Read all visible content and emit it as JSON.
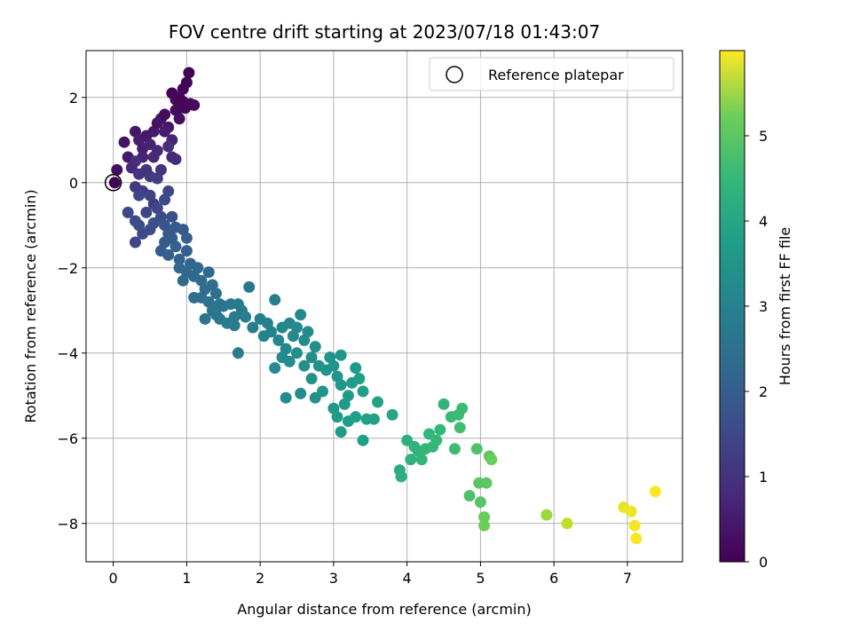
{
  "chart_data": {
    "type": "scatter",
    "title": "FOV centre drift starting at 2023/07/18 01:43:07",
    "xlabel": "Angular distance from reference (arcmin)",
    "ylabel": "Rotation from reference (arcmin)",
    "xlim": [
      -0.37,
      7.75
    ],
    "ylim": [
      -8.9,
      3.1
    ],
    "xticks": [
      "0",
      "1",
      "2",
      "3",
      "4",
      "5",
      "6",
      "7"
    ],
    "yticks": [
      "2",
      "0",
      "−2",
      "−4",
      "−6",
      "−8"
    ],
    "grid": true,
    "legend": {
      "placement": "top-right",
      "label": "Reference platepar"
    },
    "reference_point": {
      "x": 0,
      "y": 0
    },
    "colorbar": {
      "label": "Hours from first FF file",
      "ticks": [
        "0",
        "1",
        "2",
        "3",
        "4",
        "5"
      ],
      "range": [
        0,
        6
      ],
      "colormap": "viridis"
    },
    "points": [
      [
        0.02,
        0.0,
        0.02
      ],
      [
        0.05,
        0.3,
        0.2
      ],
      [
        0.2,
        0.6,
        0.4
      ],
      [
        0.15,
        0.95,
        0.3
      ],
      [
        0.3,
        1.2,
        0.35
      ],
      [
        0.35,
        1.0,
        0.5
      ],
      [
        0.4,
        0.8,
        0.5
      ],
      [
        0.45,
        1.1,
        0.4
      ],
      [
        0.5,
        0.9,
        0.6
      ],
      [
        0.55,
        1.2,
        0.45
      ],
      [
        0.6,
        1.4,
        0.3
      ],
      [
        0.65,
        1.5,
        0.35
      ],
      [
        0.7,
        1.6,
        0.2
      ],
      [
        0.75,
        1.3,
        0.4
      ],
      [
        0.8,
        1.0,
        0.6
      ],
      [
        0.85,
        1.7,
        0.2
      ],
      [
        0.9,
        1.5,
        0.25
      ],
      [
        0.95,
        1.9,
        0.1
      ],
      [
        0.8,
        2.1,
        0.05
      ],
      [
        0.85,
        1.95,
        0.1
      ],
      [
        0.9,
        2.0,
        0.08
      ],
      [
        0.95,
        2.2,
        0.05
      ],
      [
        1.0,
        2.35,
        0.03
      ],
      [
        1.03,
        2.58,
        0.01
      ],
      [
        1.05,
        1.85,
        0.1
      ],
      [
        1.1,
        1.82,
        0.12
      ],
      [
        0.9,
        1.75,
        0.15
      ],
      [
        0.98,
        1.75,
        0.12
      ],
      [
        0.7,
        1.2,
        0.5
      ],
      [
        0.6,
        0.75,
        0.7
      ],
      [
        0.75,
        0.85,
        0.8
      ],
      [
        0.8,
        0.6,
        0.7
      ],
      [
        0.85,
        0.55,
        0.75
      ],
      [
        0.55,
        0.6,
        0.7
      ],
      [
        0.4,
        0.6,
        0.6
      ],
      [
        0.3,
        0.5,
        0.8
      ],
      [
        0.25,
        0.35,
        0.7
      ],
      [
        0.35,
        0.2,
        0.9
      ],
      [
        0.45,
        0.3,
        0.85
      ],
      [
        0.5,
        0.15,
        1.0
      ],
      [
        0.6,
        0.1,
        1.1
      ],
      [
        0.65,
        0.3,
        0.9
      ],
      [
        0.3,
        -0.1,
        1.0
      ],
      [
        0.4,
        -0.2,
        1.1
      ],
      [
        0.35,
        -0.3,
        1.3
      ],
      [
        0.5,
        -0.3,
        1.2
      ],
      [
        0.55,
        -0.5,
        1.1
      ],
      [
        0.45,
        -0.7,
        1.25
      ],
      [
        0.6,
        -0.6,
        1.3
      ],
      [
        0.7,
        -0.4,
        1.35
      ],
      [
        0.75,
        -0.2,
        1.3
      ],
      [
        0.65,
        -0.8,
        1.4
      ],
      [
        0.2,
        -0.7,
        1.3
      ],
      [
        0.3,
        -0.9,
        1.35
      ],
      [
        0.35,
        -1.0,
        1.4
      ],
      [
        0.4,
        -1.2,
        1.35
      ],
      [
        0.3,
        -1.4,
        1.3
      ],
      [
        0.5,
        -1.1,
        1.45
      ],
      [
        0.55,
        -0.95,
        1.5
      ],
      [
        0.7,
        -1.0,
        1.6
      ],
      [
        0.75,
        -1.2,
        1.65
      ],
      [
        0.8,
        -0.8,
        1.5
      ],
      [
        0.85,
        -1.05,
        1.7
      ],
      [
        0.95,
        -1.1,
        1.75
      ],
      [
        1.0,
        -1.3,
        1.8
      ],
      [
        0.8,
        -1.3,
        1.7
      ],
      [
        0.7,
        -1.4,
        1.75
      ],
      [
        0.65,
        -1.6,
        1.7
      ],
      [
        0.75,
        -1.7,
        1.8
      ],
      [
        0.85,
        -1.5,
        1.85
      ],
      [
        0.9,
        -1.8,
        1.9
      ],
      [
        1.0,
        -1.6,
        1.85
      ],
      [
        1.05,
        -1.9,
        1.95
      ],
      [
        0.9,
        -2.0,
        2.0
      ],
      [
        1.0,
        -2.1,
        2.0
      ],
      [
        0.95,
        -2.3,
        2.05
      ],
      [
        1.1,
        -2.2,
        2.05
      ],
      [
        1.15,
        -2.0,
        2.0
      ],
      [
        1.2,
        -2.3,
        2.1
      ],
      [
        1.3,
        -2.1,
        2.05
      ],
      [
        1.25,
        -2.5,
        2.15
      ],
      [
        1.35,
        -2.4,
        2.15
      ],
      [
        1.2,
        -2.7,
        2.2
      ],
      [
        1.1,
        -2.7,
        2.15
      ],
      [
        1.3,
        -2.8,
        2.25
      ],
      [
        1.4,
        -2.6,
        2.2
      ],
      [
        1.45,
        -2.85,
        2.3
      ],
      [
        1.35,
        -3.0,
        2.25
      ],
      [
        1.25,
        -3.2,
        2.3
      ],
      [
        1.4,
        -3.1,
        2.35
      ],
      [
        1.45,
        -3.2,
        2.4
      ],
      [
        1.5,
        -2.9,
        2.35
      ],
      [
        1.6,
        -2.85,
        2.4
      ],
      [
        1.7,
        -2.85,
        2.45
      ],
      [
        1.65,
        -3.15,
        2.5
      ],
      [
        1.75,
        -3.0,
        2.45
      ],
      [
        1.8,
        -3.15,
        2.55
      ],
      [
        1.55,
        -3.3,
        2.5
      ],
      [
        1.65,
        -3.35,
        2.55
      ],
      [
        1.85,
        -2.45,
        2.4
      ],
      [
        1.7,
        -4.0,
        2.5
      ],
      [
        1.9,
        -3.4,
        2.6
      ],
      [
        2.0,
        -3.2,
        2.6
      ],
      [
        2.1,
        -3.3,
        2.65
      ],
      [
        2.15,
        -3.5,
        2.7
      ],
      [
        2.2,
        -2.75,
        2.6
      ],
      [
        2.05,
        -3.6,
        2.7
      ],
      [
        2.25,
        -3.7,
        2.75
      ],
      [
        2.3,
        -3.4,
        2.75
      ],
      [
        2.4,
        -3.3,
        2.8
      ],
      [
        2.35,
        -3.9,
        2.8
      ],
      [
        2.45,
        -3.6,
        2.85
      ],
      [
        2.5,
        -3.4,
        2.85
      ],
      [
        2.55,
        -3.1,
        2.8
      ],
      [
        2.6,
        -3.7,
        2.9
      ],
      [
        2.65,
        -3.5,
        2.9
      ],
      [
        2.3,
        -4.1,
        2.85
      ],
      [
        2.2,
        -4.35,
        2.85
      ],
      [
        2.4,
        -4.2,
        2.9
      ],
      [
        2.5,
        -4.0,
        2.95
      ],
      [
        2.6,
        -4.3,
        3.0
      ],
      [
        2.7,
        -4.1,
        3.0
      ],
      [
        2.75,
        -3.85,
        2.95
      ],
      [
        2.8,
        -4.3,
        3.05
      ],
      [
        2.35,
        -5.05,
        2.9
      ],
      [
        2.55,
        -4.95,
        2.95
      ],
      [
        2.7,
        -4.6,
        3.05
      ],
      [
        2.75,
        -5.05,
        3.05
      ],
      [
        2.85,
        -4.9,
        3.1
      ],
      [
        2.9,
        -4.4,
        3.1
      ],
      [
        2.95,
        -4.1,
        3.05
      ],
      [
        3.0,
        -4.3,
        3.1
      ],
      [
        3.05,
        -4.55,
        3.15
      ],
      [
        3.1,
        -4.75,
        3.2
      ],
      [
        3.1,
        -4.05,
        3.1
      ],
      [
        3.0,
        -5.3,
        3.2
      ],
      [
        3.05,
        -5.5,
        3.25
      ],
      [
        3.15,
        -5.2,
        3.2
      ],
      [
        3.2,
        -5.0,
        3.25
      ],
      [
        3.25,
        -4.7,
        3.3
      ],
      [
        3.3,
        -4.35,
        3.25
      ],
      [
        3.35,
        -4.6,
        3.35
      ],
      [
        3.4,
        -4.9,
        3.35
      ],
      [
        3.2,
        -5.6,
        3.3
      ],
      [
        3.3,
        -5.5,
        3.35
      ],
      [
        3.45,
        -5.55,
        3.4
      ],
      [
        3.55,
        -5.55,
        3.45
      ],
      [
        3.6,
        -5.15,
        3.45
      ],
      [
        3.1,
        -5.85,
        3.3
      ],
      [
        3.4,
        -6.05,
        3.35
      ],
      [
        3.8,
        -5.45,
        3.55
      ],
      [
        3.9,
        -6.75,
        3.7
      ],
      [
        3.92,
        -6.9,
        3.75
      ],
      [
        4.0,
        -6.05,
        3.8
      ],
      [
        4.05,
        -6.5,
        3.85
      ],
      [
        4.1,
        -6.2,
        3.85
      ],
      [
        4.15,
        -6.3,
        3.9
      ],
      [
        4.2,
        -6.5,
        3.95
      ],
      [
        4.25,
        -6.25,
        3.95
      ],
      [
        4.3,
        -5.9,
        3.95
      ],
      [
        4.35,
        -6.2,
        4.0
      ],
      [
        4.4,
        -6.05,
        4.0
      ],
      [
        4.45,
        -5.8,
        4.0
      ],
      [
        4.5,
        -5.2,
        3.9
      ],
      [
        4.6,
        -5.5,
        4.05
      ],
      [
        4.65,
        -6.25,
        4.1
      ],
      [
        4.7,
        -5.45,
        4.1
      ],
      [
        4.72,
        -5.75,
        4.15
      ],
      [
        4.75,
        -5.3,
        4.1
      ],
      [
        4.85,
        -7.35,
        4.3
      ],
      [
        4.95,
        -6.25,
        4.3
      ],
      [
        4.98,
        -7.05,
        4.4
      ],
      [
        5.0,
        -7.5,
        4.4
      ],
      [
        5.08,
        -7.05,
        4.45
      ],
      [
        5.05,
        -7.85,
        4.6
      ],
      [
        5.05,
        -8.05,
        4.65
      ],
      [
        5.12,
        -6.42,
        4.5
      ],
      [
        5.15,
        -6.5,
        4.6
      ],
      [
        5.9,
        -7.8,
        5.1
      ],
      [
        6.18,
        -8.0,
        5.4
      ],
      [
        6.95,
        -7.62,
        5.8
      ],
      [
        7.05,
        -7.72,
        5.85
      ],
      [
        7.1,
        -8.05,
        5.9
      ],
      [
        7.12,
        -8.35,
        5.95
      ],
      [
        7.38,
        -7.25,
        6.0
      ]
    ]
  }
}
